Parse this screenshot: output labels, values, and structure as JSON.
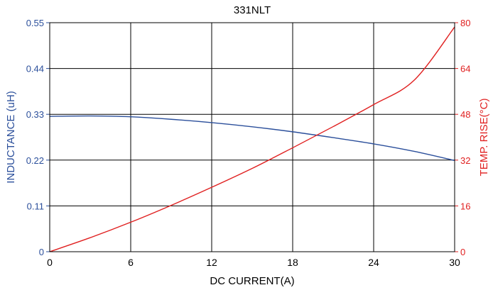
{
  "chart_data": {
    "type": "line",
    "title": "331NLT",
    "xlabel": "DC CURRENT(A)",
    "ylabel_left": "INDUCTANCE (uH)",
    "ylabel_right": "TEMP. RISE(°C)",
    "xlim": [
      0,
      30
    ],
    "ylim_left": [
      0,
      0.55
    ],
    "ylim_right": [
      0,
      80
    ],
    "x_ticks": [
      "0",
      "6",
      "12",
      "18",
      "24",
      "30"
    ],
    "y_left_ticks": [
      "0",
      "0.11",
      "0.22",
      "0.33",
      "0.44",
      "0.55"
    ],
    "y_right_ticks": [
      "0",
      "16",
      "32",
      "48",
      "64",
      "80"
    ],
    "grid": true,
    "series": [
      {
        "name": "INDUCTANCE (uH)",
        "axis": "left",
        "color": "#2b4f9b",
        "x": [
          0,
          3,
          6,
          9,
          12,
          15,
          18,
          21,
          24,
          27,
          30
        ],
        "y": [
          0.325,
          0.326,
          0.324,
          0.318,
          0.31,
          0.3,
          0.288,
          0.274,
          0.259,
          0.241,
          0.219
        ]
      },
      {
        "name": "TEMP. RISE(°C)",
        "axis": "right",
        "color": "#e02020",
        "x": [
          0,
          3,
          6,
          9,
          12,
          15,
          18,
          21,
          24,
          27,
          30
        ],
        "y": [
          0,
          4.9,
          10.3,
          16.2,
          22.5,
          29.1,
          36.3,
          43.7,
          51.4,
          59.9,
          78.5
        ]
      }
    ]
  },
  "colors": {
    "left_axis_text": "#2b4f9b",
    "right_axis_text": "#e02020",
    "grid": "#000000"
  }
}
